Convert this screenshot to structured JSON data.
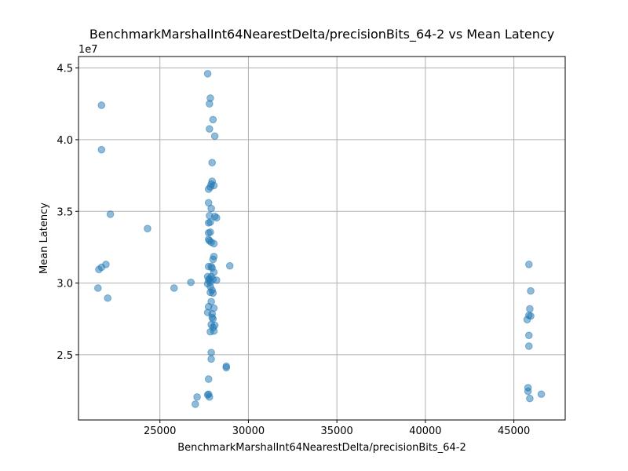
{
  "chart_data": {
    "type": "scatter",
    "title": "BenchmarkMarshalInt64NearestDelta/precisionBits_64-2 vs Mean Latency",
    "xlabel": "BenchmarkMarshalInt64NearestDelta/precisionBits_64-2",
    "ylabel": "Mean Latency",
    "y_offset_label": "1e7",
    "xlim": [
      20400,
      47900
    ],
    "ylim": [
      20450000,
      45800000
    ],
    "x_ticks": [
      25000,
      30000,
      35000,
      40000,
      45000
    ],
    "x_tick_labels": [
      "25000",
      "30000",
      "35000",
      "40000",
      "45000"
    ],
    "y_ticks": [
      25000000,
      30000000,
      35000000,
      40000000,
      45000000
    ],
    "y_tick_labels": [
      "2.5",
      "3.0",
      "3.5",
      "4.0",
      "4.5"
    ],
    "grid": true,
    "marker_color": "#1f77b4",
    "marker_alpha": 0.5,
    "points": [
      [
        21700,
        42400000
      ],
      [
        21700,
        39300000
      ],
      [
        22200,
        34800000
      ],
      [
        21950,
        31300000
      ],
      [
        21700,
        31100000
      ],
      [
        21550,
        30950000
      ],
      [
        21500,
        29650000
      ],
      [
        22050,
        28950000
      ],
      [
        24300,
        33800000
      ],
      [
        25800,
        29650000
      ],
      [
        26750,
        30050000
      ],
      [
        27100,
        22050000
      ],
      [
        27000,
        21550000
      ],
      [
        27700,
        44600000
      ],
      [
        27850,
        42900000
      ],
      [
        27800,
        42500000
      ],
      [
        28000,
        41400000
      ],
      [
        27800,
        40750000
      ],
      [
        28100,
        40250000
      ],
      [
        27950,
        38400000
      ],
      [
        27950,
        37100000
      ],
      [
        28050,
        36800000
      ],
      [
        27900,
        36900000
      ],
      [
        27850,
        36700000
      ],
      [
        27750,
        36550000
      ],
      [
        27750,
        35600000
      ],
      [
        27900,
        35200000
      ],
      [
        27800,
        34700000
      ],
      [
        28100,
        34650000
      ],
      [
        28200,
        34550000
      ],
      [
        27850,
        34250000
      ],
      [
        27750,
        34200000
      ],
      [
        27850,
        33550000
      ],
      [
        27750,
        33500000
      ],
      [
        27750,
        33050000
      ],
      [
        27800,
        32950000
      ],
      [
        27900,
        32850000
      ],
      [
        28050,
        32750000
      ],
      [
        28050,
        31850000
      ],
      [
        28000,
        31650000
      ],
      [
        27750,
        31150000
      ],
      [
        27900,
        31150000
      ],
      [
        27950,
        31050000
      ],
      [
        28050,
        30750000
      ],
      [
        27700,
        30450000
      ],
      [
        27900,
        30450000
      ],
      [
        27800,
        30300000
      ],
      [
        27750,
        30200000
      ],
      [
        28000,
        30250000
      ],
      [
        28200,
        30200000
      ],
      [
        27850,
        30050000
      ],
      [
        27700,
        29950000
      ],
      [
        27850,
        29750000
      ],
      [
        27950,
        29500000
      ],
      [
        27850,
        29350000
      ],
      [
        28000,
        29300000
      ],
      [
        27900,
        28700000
      ],
      [
        27750,
        28350000
      ],
      [
        28050,
        28250000
      ],
      [
        27700,
        27950000
      ],
      [
        27950,
        27850000
      ],
      [
        27950,
        27600000
      ],
      [
        28000,
        27500000
      ],
      [
        27900,
        27100000
      ],
      [
        28100,
        27050000
      ],
      [
        28000,
        26900000
      ],
      [
        28050,
        26650000
      ],
      [
        27850,
        26600000
      ],
      [
        27900,
        25150000
      ],
      [
        27900,
        24700000
      ],
      [
        27750,
        23300000
      ],
      [
        27750,
        22250000
      ],
      [
        27700,
        22200000
      ],
      [
        27800,
        22050000
      ],
      [
        28750,
        24200000
      ],
      [
        28750,
        24100000
      ],
      [
        28950,
        31200000
      ],
      [
        45850,
        31300000
      ],
      [
        45950,
        29450000
      ],
      [
        45900,
        28200000
      ],
      [
        45850,
        27750000
      ],
      [
        45950,
        27700000
      ],
      [
        45750,
        27450000
      ],
      [
        45850,
        26350000
      ],
      [
        45850,
        25600000
      ],
      [
        45800,
        22700000
      ],
      [
        45800,
        22450000
      ],
      [
        45900,
        21950000
      ],
      [
        46550,
        22250000
      ]
    ]
  }
}
